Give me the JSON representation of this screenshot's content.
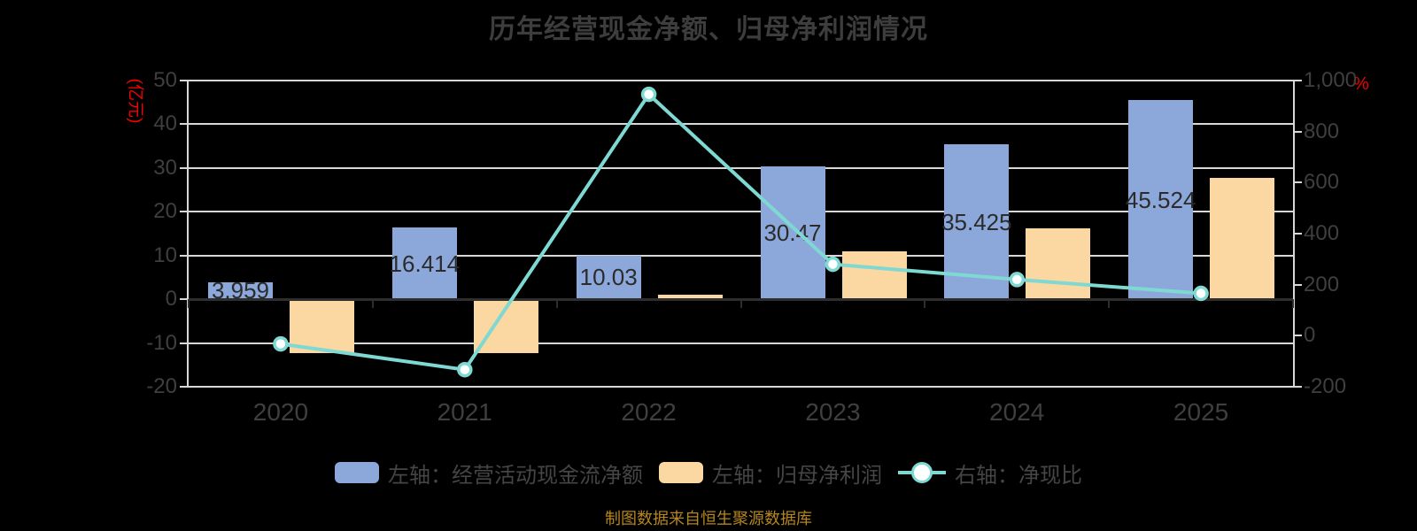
{
  "title": "历年经营现金净额、归母净利润情况",
  "footnote": "制图数据来自恒生聚源数据库",
  "axes": {
    "left_unit": "(亿元)",
    "right_unit": "%",
    "left_ticks": [
      "50",
      "40",
      "30",
      "20",
      "10",
      "0",
      "-10",
      "-20"
    ],
    "right_ticks": [
      "1,000",
      "800",
      "600",
      "400",
      "200",
      "0",
      "-200"
    ]
  },
  "legend": [
    {
      "label": "左轴：经营活动现金流净额"
    },
    {
      "label": "左轴：归母净利润"
    },
    {
      "label": "右轴：净现比"
    }
  ],
  "chart_data": {
    "type": "bar+line",
    "categories": [
      "2020",
      "2021",
      "2022",
      "2023",
      "2024",
      "2025"
    ],
    "series": [
      {
        "name": "左轴：经营活动现金流净额",
        "type": "bar",
        "axis": "left",
        "color": "#8CA8DB",
        "values": [
          3.959,
          16.414,
          10.03,
          30.47,
          35.425,
          45.524
        ],
        "data_labels": [
          "3.959",
          "16.414",
          "10.03",
          "30.47",
          "35.425",
          "45.524"
        ]
      },
      {
        "name": "左轴：归母净利润",
        "type": "bar",
        "axis": "left",
        "color": "#FBD7A1",
        "values": [
          -12.3,
          -12.4,
          1.06,
          10.9,
          16.2,
          27.7
        ]
      },
      {
        "name": "右轴：净现比",
        "type": "line",
        "axis": "right",
        "color": "#7ED9D3",
        "marker_fill": "#FFFFFF",
        "values": [
          -32,
          -133,
          946,
          280,
          220,
          166
        ]
      }
    ],
    "left_axis": {
      "min": -20,
      "max": 50,
      "interval": 10,
      "unit": "(亿元)"
    },
    "right_axis": {
      "min": -200,
      "max": 1000,
      "interval": 200,
      "unit": "%"
    },
    "grid": true,
    "legend_position": "bottom",
    "colors": {
      "title_text": "#3D3D3D",
      "axis_text": "#3F3F3F",
      "grid_line": "#D8D8D8",
      "axis_line_dark": "#2E2E2E",
      "unit_text": "#F40000",
      "footnote_text": "#B5861B",
      "background": "#000000"
    }
  }
}
